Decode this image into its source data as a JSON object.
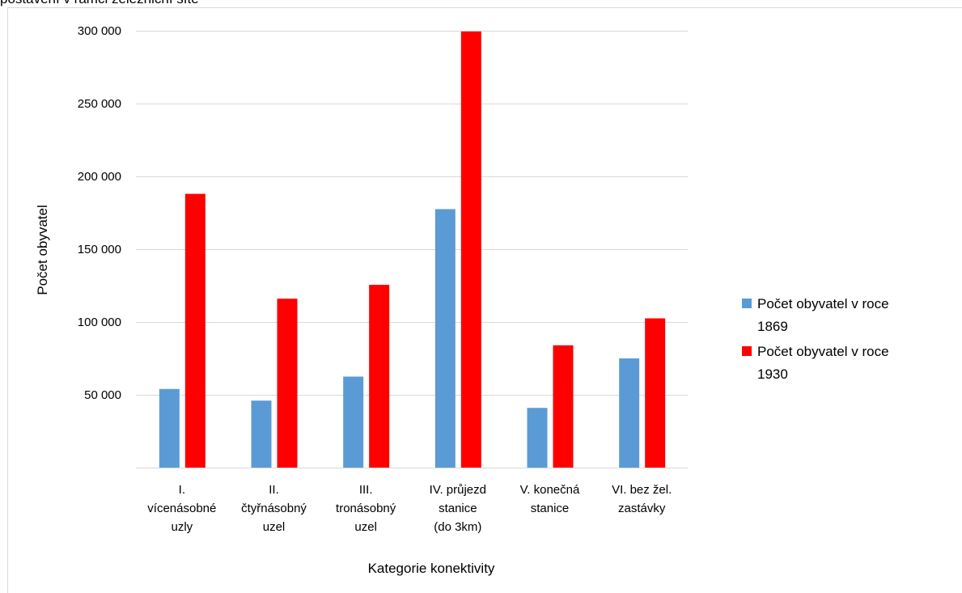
{
  "chart_data": {
    "type": "bar",
    "partial_title": "postavení v rámci železniční sítě",
    "xlabel": "Kategorie konektivity",
    "ylabel": "Počet obyvatel",
    "ylim": [
      0,
      300000
    ],
    "yticks": [
      50000,
      100000,
      150000,
      200000,
      250000,
      300000
    ],
    "ytick_labels": [
      "50 000",
      "100 000",
      "150 000",
      "200 000",
      "250 000",
      "300 000"
    ],
    "grid": true,
    "legend_position": "right",
    "categories": [
      [
        "I.",
        "vícenásobné",
        "uzly"
      ],
      [
        "II.",
        "čtyřnásobný",
        "uzel"
      ],
      [
        "III.",
        "tronásobný",
        "uzel"
      ],
      [
        "IV. průjezd",
        "stanice",
        "(do 3km)"
      ],
      [
        "V.  konečná",
        "stanice"
      ],
      [
        "VI. bez žel.",
        "zastávky"
      ]
    ],
    "series": [
      {
        "name": "Počet obyvatel v roce 1869",
        "legend_lines": [
          "Počet obyvatel v roce",
          "1869"
        ],
        "color": "#5b9bd5",
        "values": [
          54000,
          46000,
          62500,
          177500,
          41000,
          75000
        ]
      },
      {
        "name": "Počet obyvatel v roce 1930",
        "legend_lines": [
          "Počet obyvatel v roce",
          "1930"
        ],
        "color": "#ff0000",
        "values": [
          188000,
          116000,
          125500,
          299500,
          84000,
          102500
        ]
      }
    ]
  }
}
